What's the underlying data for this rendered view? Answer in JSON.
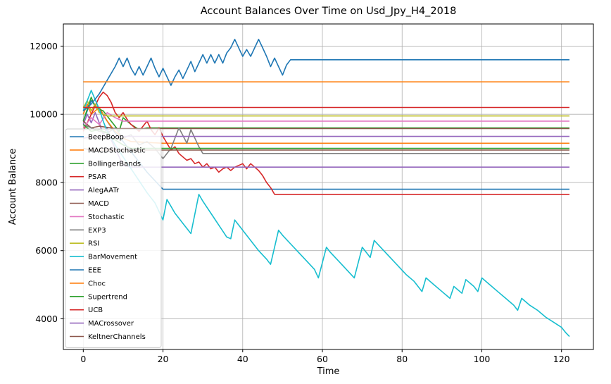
{
  "chart_data": {
    "type": "line",
    "title": "Account Balances Over Time on Usd_Jpy_H4_2018",
    "xlabel": "Time",
    "ylabel": "Account Balance",
    "xlim": [
      -5,
      128
    ],
    "ylim": [
      3100,
      12650
    ],
    "xticks": [
      0,
      20,
      40,
      60,
      80,
      100,
      120
    ],
    "yticks": [
      4000,
      6000,
      8000,
      10000,
      12000
    ],
    "xtick_labels": [
      "0",
      "20",
      "40",
      "60",
      "80",
      "100",
      "120"
    ],
    "ytick_labels": [
      "4000",
      "6000",
      "8000",
      "10000",
      "12000"
    ],
    "grid": true,
    "legend_position": "lower-left",
    "series": [
      {
        "name": "BeepBoop",
        "color": "#1f77b4",
        "points": [
          [
            0,
            9800
          ],
          [
            2,
            10400
          ],
          [
            4,
            10150
          ],
          [
            6,
            9800
          ],
          [
            8,
            9450
          ],
          [
            10,
            9200
          ],
          [
            12,
            8900
          ],
          [
            14,
            8600
          ],
          [
            16,
            8300
          ],
          [
            18,
            8050
          ],
          [
            20,
            7800
          ],
          [
            122,
            7800
          ]
        ]
      },
      {
        "name": "MACDStochastic",
        "color": "#ff7f0e",
        "points": [
          [
            0,
            10000
          ],
          [
            1,
            10300
          ],
          [
            2,
            10000
          ],
          [
            4,
            10200
          ],
          [
            6,
            9800
          ],
          [
            8,
            9500
          ],
          [
            10,
            9300
          ],
          [
            12,
            9200
          ],
          [
            20,
            9150
          ],
          [
            122,
            9150
          ]
        ]
      },
      {
        "name": "BollingerBands",
        "color": "#2ca02c",
        "points": [
          [
            0,
            9800
          ],
          [
            2,
            10500
          ],
          [
            3,
            10200
          ],
          [
            5,
            10100
          ],
          [
            7,
            9800
          ],
          [
            9,
            9500
          ],
          [
            10,
            9900
          ],
          [
            12,
            9700
          ],
          [
            14,
            9550
          ],
          [
            16,
            9600
          ],
          [
            18,
            9600
          ],
          [
            122,
            9600
          ]
        ]
      },
      {
        "name": "PSAR",
        "color": "#d62728",
        "points": [
          [
            0,
            9500
          ],
          [
            2,
            10000
          ],
          [
            4,
            10500
          ],
          [
            5,
            10650
          ],
          [
            6,
            10550
          ],
          [
            7,
            10350
          ],
          [
            8,
            10050
          ],
          [
            9,
            9900
          ],
          [
            10,
            10050
          ],
          [
            11,
            9850
          ],
          [
            12,
            9700
          ],
          [
            13,
            9600
          ],
          [
            14,
            9500
          ],
          [
            15,
            9650
          ],
          [
            16,
            9800
          ],
          [
            17,
            9550
          ],
          [
            18,
            9400
          ],
          [
            19,
            9600
          ],
          [
            20,
            9350
          ],
          [
            21,
            9150
          ],
          [
            22,
            8950
          ],
          [
            23,
            9050
          ],
          [
            24,
            8850
          ],
          [
            25,
            8750
          ],
          [
            26,
            8650
          ],
          [
            27,
            8700
          ],
          [
            28,
            8550
          ],
          [
            29,
            8600
          ],
          [
            30,
            8450
          ],
          [
            31,
            8550
          ],
          [
            32,
            8400
          ],
          [
            33,
            8450
          ],
          [
            34,
            8300
          ],
          [
            35,
            8400
          ],
          [
            36,
            8450
          ],
          [
            37,
            8350
          ],
          [
            38,
            8450
          ],
          [
            39,
            8500
          ],
          [
            40,
            8550
          ],
          [
            41,
            8400
          ],
          [
            42,
            8550
          ],
          [
            43,
            8450
          ],
          [
            44,
            8350
          ],
          [
            45,
            8200
          ],
          [
            46,
            8000
          ],
          [
            47,
            7850
          ],
          [
            48,
            7650
          ],
          [
            122,
            7650
          ]
        ]
      },
      {
        "name": "AlegAATr",
        "color": "#9467bd",
        "points": [
          [
            0,
            9700
          ],
          [
            1,
            10000
          ],
          [
            2,
            9750
          ],
          [
            3,
            10050
          ],
          [
            4,
            9750
          ],
          [
            5,
            9400
          ],
          [
            6,
            9600
          ],
          [
            7,
            9250
          ],
          [
            8,
            9000
          ],
          [
            9,
            8750
          ],
          [
            10,
            8500
          ],
          [
            12,
            8450
          ],
          [
            122,
            8450
          ]
        ]
      },
      {
        "name": "MACD",
        "color": "#8c564b",
        "points": [
          [
            0,
            9800
          ],
          [
            2,
            9600
          ],
          [
            4,
            9650
          ],
          [
            8,
            9580
          ],
          [
            122,
            9580
          ]
        ]
      },
      {
        "name": "Stochastic",
        "color": "#e377c2",
        "points": [
          [
            0,
            9600
          ],
          [
            2,
            9900
          ],
          [
            4,
            9700
          ],
          [
            6,
            10050
          ],
          [
            8,
            9900
          ],
          [
            10,
            9800
          ],
          [
            122,
            9800
          ]
        ]
      },
      {
        "name": "EXP3",
        "color": "#7f7f7f",
        "points": [
          [
            0,
            9700
          ],
          [
            2,
            9600
          ],
          [
            4,
            9500
          ],
          [
            6,
            9450
          ],
          [
            8,
            9600
          ],
          [
            10,
            9300
          ],
          [
            12,
            9400
          ],
          [
            14,
            9100
          ],
          [
            16,
            9200
          ],
          [
            18,
            9000
          ],
          [
            20,
            8700
          ],
          [
            22,
            9000
          ],
          [
            24,
            9600
          ],
          [
            26,
            9150
          ],
          [
            27,
            9550
          ],
          [
            28,
            9300
          ],
          [
            29,
            9050
          ],
          [
            30,
            8850
          ],
          [
            122,
            8850
          ]
        ]
      },
      {
        "name": "RSI",
        "color": "#bcbd22",
        "points": [
          [
            0,
            10200
          ],
          [
            1,
            10400
          ],
          [
            2,
            10100
          ],
          [
            3,
            10300
          ],
          [
            4,
            10050
          ],
          [
            6,
            9950
          ],
          [
            122,
            9950
          ]
        ]
      },
      {
        "name": "BarMovement",
        "color": "#17becf",
        "points": [
          [
            0,
            10100
          ],
          [
            2,
            10700
          ],
          [
            4,
            10150
          ],
          [
            5,
            9800
          ],
          [
            6,
            9500
          ],
          [
            8,
            9100
          ],
          [
            10,
            8750
          ],
          [
            12,
            8400
          ],
          [
            14,
            8050
          ],
          [
            16,
            7700
          ],
          [
            18,
            7400
          ],
          [
            20,
            6900
          ],
          [
            21,
            7500
          ],
          [
            22,
            7300
          ],
          [
            23,
            7100
          ],
          [
            25,
            6800
          ],
          [
            27,
            6500
          ],
          [
            29,
            7650
          ],
          [
            30,
            7450
          ],
          [
            32,
            7100
          ],
          [
            34,
            6750
          ],
          [
            36,
            6400
          ],
          [
            37,
            6350
          ],
          [
            38,
            6900
          ],
          [
            40,
            6600
          ],
          [
            42,
            6300
          ],
          [
            44,
            6000
          ],
          [
            46,
            5750
          ],
          [
            47,
            5600
          ],
          [
            49,
            6600
          ],
          [
            50,
            6450
          ],
          [
            52,
            6200
          ],
          [
            54,
            5950
          ],
          [
            56,
            5700
          ],
          [
            58,
            5450
          ],
          [
            59,
            5200
          ],
          [
            61,
            6100
          ],
          [
            62,
            5950
          ],
          [
            64,
            5700
          ],
          [
            66,
            5450
          ],
          [
            68,
            5200
          ],
          [
            70,
            6100
          ],
          [
            71,
            5950
          ],
          [
            72,
            5800
          ],
          [
            73,
            6300
          ],
          [
            75,
            6050
          ],
          [
            77,
            5800
          ],
          [
            79,
            5550
          ],
          [
            81,
            5300
          ],
          [
            83,
            5100
          ],
          [
            85,
            4800
          ],
          [
            86,
            5200
          ],
          [
            88,
            5000
          ],
          [
            90,
            4800
          ],
          [
            92,
            4600
          ],
          [
            93,
            4950
          ],
          [
            95,
            4750
          ],
          [
            96,
            5150
          ],
          [
            98,
            4950
          ],
          [
            99,
            4800
          ],
          [
            100,
            5200
          ],
          [
            102,
            5000
          ],
          [
            104,
            4800
          ],
          [
            106,
            4600
          ],
          [
            108,
            4400
          ],
          [
            109,
            4250
          ],
          [
            110,
            4600
          ],
          [
            112,
            4400
          ],
          [
            114,
            4250
          ],
          [
            116,
            4050
          ],
          [
            118,
            3900
          ],
          [
            120,
            3750
          ],
          [
            121,
            3600
          ],
          [
            122,
            3480
          ]
        ]
      },
      {
        "name": "EEE",
        "color": "#1f77b4",
        "points": [
          [
            0,
            10100
          ],
          [
            2,
            10300
          ],
          [
            4,
            10600
          ],
          [
            6,
            11000
          ],
          [
            8,
            11400
          ],
          [
            9,
            11650
          ],
          [
            10,
            11400
          ],
          [
            11,
            11650
          ],
          [
            12,
            11350
          ],
          [
            13,
            11150
          ],
          [
            14,
            11400
          ],
          [
            15,
            11150
          ],
          [
            16,
            11400
          ],
          [
            17,
            11650
          ],
          [
            18,
            11350
          ],
          [
            19,
            11100
          ],
          [
            20,
            11350
          ],
          [
            21,
            11100
          ],
          [
            22,
            10850
          ],
          [
            23,
            11100
          ],
          [
            24,
            11300
          ],
          [
            25,
            11050
          ],
          [
            26,
            11300
          ],
          [
            27,
            11550
          ],
          [
            28,
            11250
          ],
          [
            29,
            11500
          ],
          [
            30,
            11750
          ],
          [
            31,
            11500
          ],
          [
            32,
            11750
          ],
          [
            33,
            11500
          ],
          [
            34,
            11750
          ],
          [
            35,
            11500
          ],
          [
            36,
            11800
          ],
          [
            37,
            11950
          ],
          [
            38,
            12200
          ],
          [
            39,
            11950
          ],
          [
            40,
            11700
          ],
          [
            41,
            11900
          ],
          [
            42,
            11700
          ],
          [
            43,
            11950
          ],
          [
            44,
            12200
          ],
          [
            45,
            11950
          ],
          [
            46,
            11700
          ],
          [
            47,
            11400
          ],
          [
            48,
            11650
          ],
          [
            49,
            11400
          ],
          [
            50,
            11150
          ],
          [
            51,
            11450
          ],
          [
            52,
            11600
          ],
          [
            122,
            11600
          ]
        ]
      },
      {
        "name": "Choc",
        "color": "#ff7f0e",
        "points": [
          [
            0,
            10950
          ],
          [
            122,
            10950
          ]
        ]
      },
      {
        "name": "Supertrend",
        "color": "#2ca02c",
        "points": [
          [
            0,
            9700
          ],
          [
            2,
            9500
          ],
          [
            4,
            9550
          ],
          [
            6,
            9450
          ],
          [
            8,
            9250
          ],
          [
            10,
            9100
          ],
          [
            12,
            9000
          ],
          [
            122,
            9000
          ]
        ]
      },
      {
        "name": "UCB",
        "color": "#d62728",
        "points": [
          [
            0,
            10200
          ],
          [
            122,
            10200
          ]
        ]
      },
      {
        "name": "MACrossover",
        "color": "#9467bd",
        "points": [
          [
            0,
            9300
          ],
          [
            3,
            9350
          ],
          [
            122,
            9350
          ]
        ]
      },
      {
        "name": "KeltnerChannels",
        "color": "#8c564b",
        "points": [
          [
            0,
            9000
          ],
          [
            2,
            8950
          ],
          [
            122,
            8950
          ]
        ]
      }
    ]
  }
}
